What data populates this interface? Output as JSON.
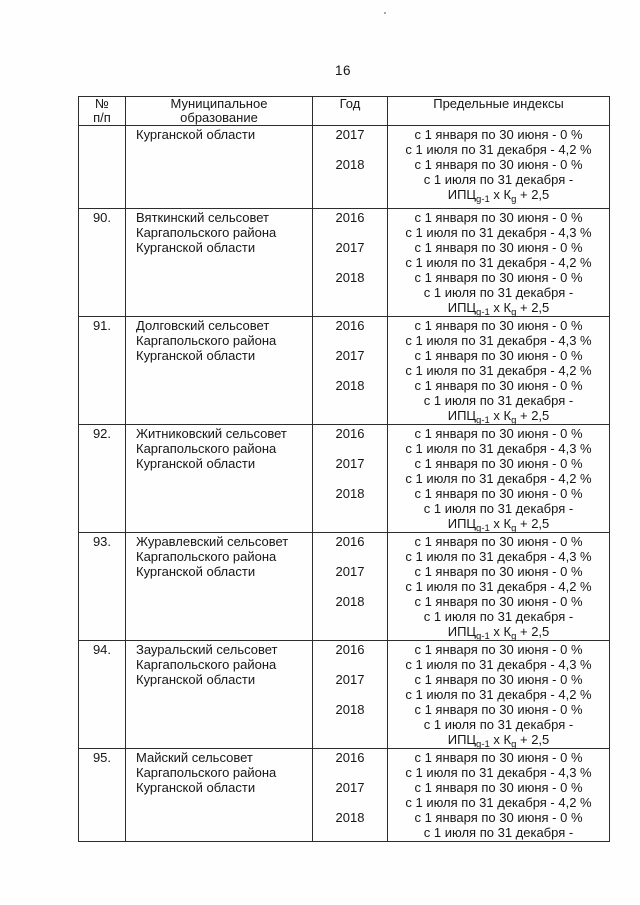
{
  "page": {
    "number": "16"
  },
  "table": {
    "headers": {
      "num_line1": "№",
      "num_line2": "п/п",
      "municipality_line1": "Муниципальное",
      "municipality_line2": "образование",
      "year": "Год",
      "indexes": "Предельные индексы"
    },
    "formula": {
      "p1": "ИПЦ",
      "s1": "g-1",
      "p2": " х К",
      "s2": "g",
      "p3": " + 2,5"
    },
    "rows": [
      {
        "num": "",
        "name_lines": [
          "Курганской области"
        ],
        "years": [
          "2017",
          "",
          "2018"
        ],
        "lines": [
          "с 1 января по 30 июня - 0 %",
          "с 1 июля по 31 декабря - 4,2 %",
          "с 1 января по 30 июня - 0 %",
          "с 1 июля по 31 декабря -"
        ]
      },
      {
        "num": "90.",
        "name_lines": [
          "Вяткинский сельсовет",
          "Каргапольского района",
          "Курганской области"
        ],
        "years": [
          "2016",
          "",
          "2017",
          "",
          "2018"
        ],
        "lines": [
          "с 1 января по 30 июня - 0 %",
          "с 1 июля по 31 декабря - 4,3 %",
          "с 1 января по 30 июня - 0 %",
          "с 1 июля по 31 декабря - 4,2 %",
          "с 1 января по 30 июня - 0 %",
          "с 1 июля по 31 декабря -"
        ]
      },
      {
        "num": "91.",
        "name_lines": [
          "Долговский сельсовет",
          "Каргапольского района",
          "Курганской области"
        ],
        "years": [
          "2016",
          "",
          "2017",
          "",
          "2018"
        ],
        "lines": [
          "с 1 января по 30 июня - 0 %",
          "с 1 июля по 31 декабря - 4,3 %",
          "с 1 января по 30 июня - 0 %",
          "с 1 июля по 31 декабря - 4,2 %",
          "с 1 января по 30 июня - 0 %",
          "с 1 июля по 31 декабря -"
        ]
      },
      {
        "num": "92.",
        "name_lines": [
          "Житниковский сельсовет",
          "Каргапольского района",
          "Курганской области"
        ],
        "years": [
          "2016",
          "",
          "2017",
          "",
          "2018"
        ],
        "lines": [
          "с 1 января по 30 июня - 0 %",
          "с 1 июля по 31 декабря - 4,3 %",
          "с 1 января по 30 июня - 0 %",
          "с 1 июля по 31 декабря - 4,2 %",
          "с 1 января по 30 июня - 0 %",
          "с 1 июля по 31 декабря -"
        ]
      },
      {
        "num": "93.",
        "name_lines": [
          "Журавлевский сельсовет",
          "Каргапольского района",
          "Курганской области"
        ],
        "years": [
          "2016",
          "",
          "2017",
          "",
          "2018"
        ],
        "lines": [
          "с 1 января по 30 июня - 0 %",
          "с 1 июля по 31 декабря - 4,3 %",
          "с 1 января по 30 июня - 0 %",
          "с 1 июля по 31 декабря - 4,2 %",
          "с 1 января по 30 июня - 0 %",
          "с 1 июля по 31 декабря -"
        ]
      },
      {
        "num": "94.",
        "name_lines": [
          "Зауральский сельсовет",
          "Каргапольского района",
          "Курганской области"
        ],
        "years": [
          "2016",
          "",
          "2017",
          "",
          "2018"
        ],
        "lines": [
          "с 1 января по 30 июня - 0 %",
          "с 1 июля по 31 декабря - 4,3 %",
          "с 1 января по 30 июня - 0 %",
          "с 1 июля по 31 декабря - 4,2 %",
          "с 1 января по 30 июня - 0 %",
          "с 1 июля по 31 декабря -"
        ]
      },
      {
        "num": "95.",
        "name_lines": [
          "Майский сельсовет",
          "Каргапольского района",
          "Курганской области"
        ],
        "years": [
          "2016",
          "",
          "2017",
          "",
          "2018"
        ],
        "lines": [
          "с 1 января по 30 июня - 0 %",
          "с 1 июля по 31 декабря - 4,3 %",
          "с 1 января по 30 июня - 0 %",
          "с 1 июля по 31 декабря - 4,2 %",
          "с 1 января по 30 июня - 0 %",
          "с 1 июля по 31 декабря -"
        ]
      }
    ]
  }
}
